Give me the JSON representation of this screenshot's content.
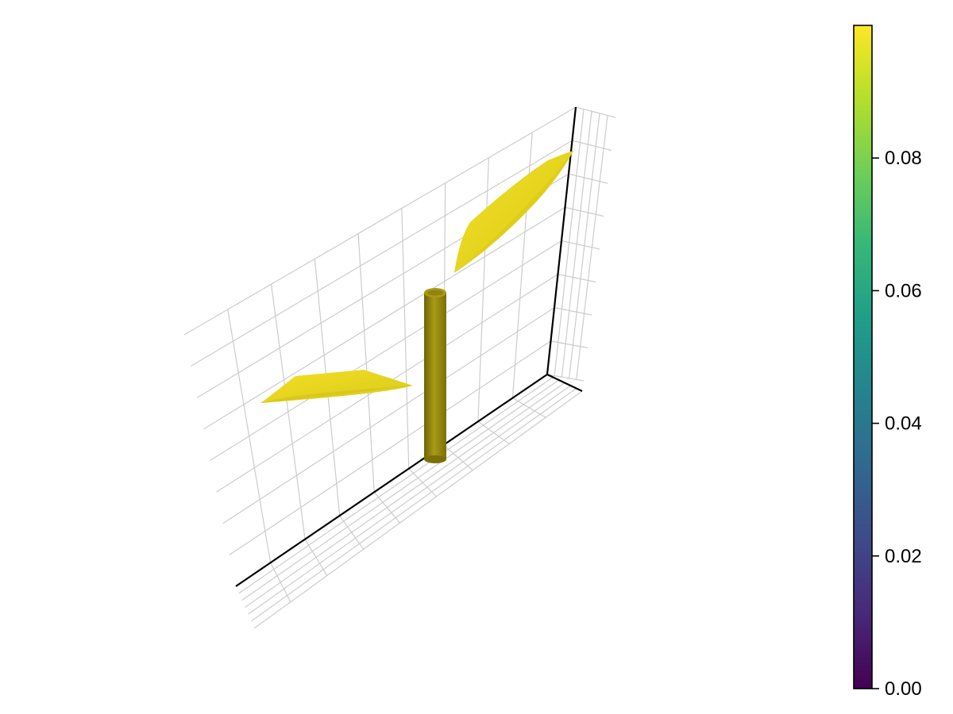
{
  "chart_data": {
    "type": "3d-surface",
    "title": "",
    "xlabel": "",
    "ylabel": "",
    "zlabel": "",
    "objects": [
      {
        "name": "leaf-left",
        "kind": "surface",
        "value": 0.1
      },
      {
        "name": "leaf-right",
        "kind": "surface",
        "value": 0.1
      },
      {
        "name": "stem",
        "kind": "cylinder",
        "value": 0.1
      }
    ],
    "colorbar": {
      "colormap": "viridis",
      "range": [
        0.0,
        0.1
      ],
      "ticks": [
        0.0,
        0.02,
        0.04,
        0.06,
        0.08
      ],
      "tick_labels": [
        "0.00",
        "0.02",
        "0.04",
        "0.06",
        "0.08"
      ],
      "stops": [
        "#440154",
        "#482878",
        "#3e4a89",
        "#31688e",
        "#26828e",
        "#1f9e89",
        "#35b779",
        "#6ece58",
        "#b5de2b",
        "#fde725"
      ]
    },
    "colors": {
      "surface": "#f0dd22",
      "surface_shade": "#d4c418",
      "cylinder": "#9a8e12",
      "cylinder_dark": "#6e6508",
      "axis": "#000000",
      "grid": "#cccccc"
    }
  }
}
